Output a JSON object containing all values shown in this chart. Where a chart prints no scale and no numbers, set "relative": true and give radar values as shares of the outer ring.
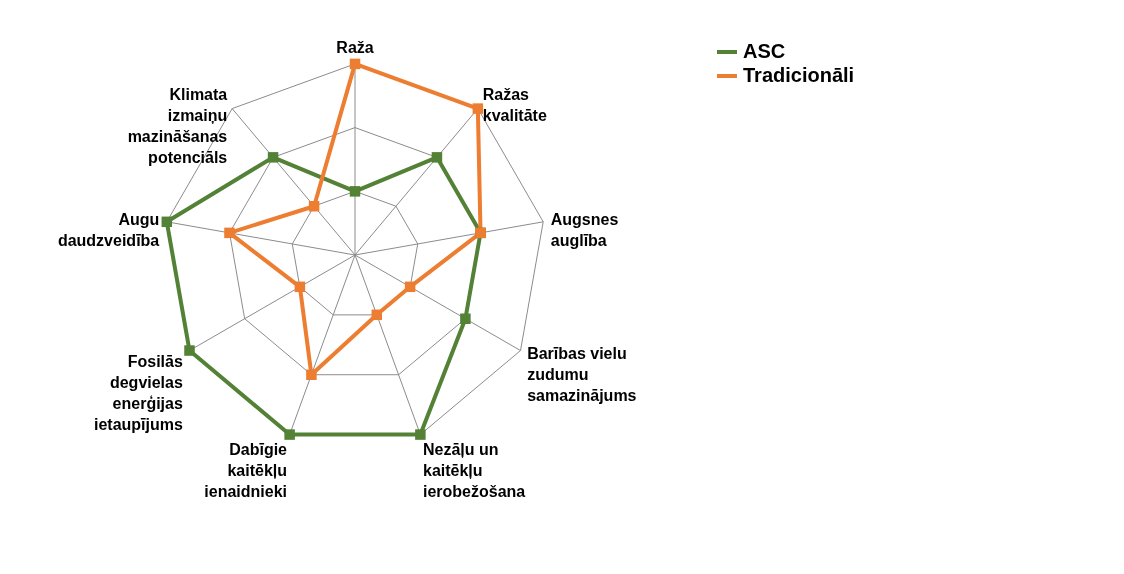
{
  "chart_data": {
    "type": "radar",
    "relative": true,
    "grid": true,
    "legend": "right",
    "marker": "square",
    "line_style": "solid",
    "categories": [
      "Raža",
      "Ražas kvalitāte",
      "Augsnes auglība",
      "Barības vielu zudumu samazinājums",
      "Nezāļu un kaitēkļu ierobežošana",
      "Dabīgie kaitēkļu ienaidnieki",
      "Fosilās degvielas enerģijas ietaupījums",
      "Augu daudzveidība",
      "Klimata izmaiņu mazināšanas potenciāls"
    ],
    "series": [
      {
        "name": "ASC",
        "color": "#538135",
        "values": [
          0.333,
          0.667,
          0.667,
          0.667,
          1,
          1,
          1,
          1,
          0.667
        ]
      },
      {
        "name": "Tradicionāli",
        "color": "#ed7d31",
        "values": [
          1,
          1,
          0.667,
          0.333,
          0.333,
          0.667,
          0.333,
          0.667,
          0.333
        ]
      }
    ]
  }
}
